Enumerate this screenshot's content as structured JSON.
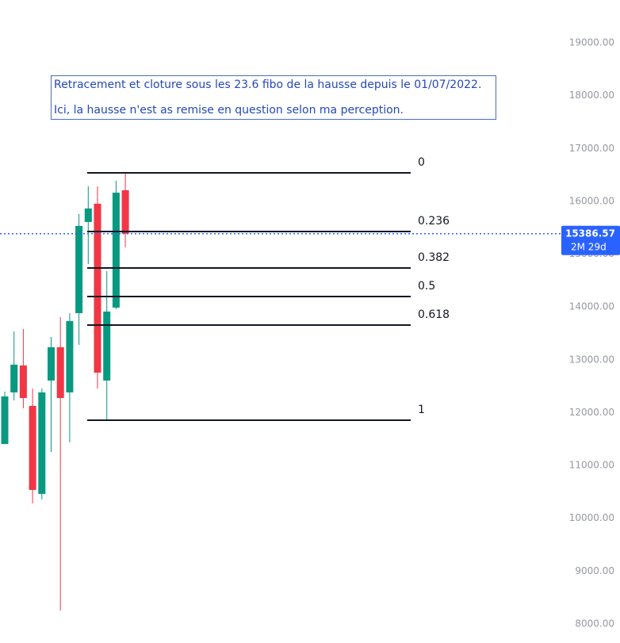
{
  "chart_data": {
    "type": "candlestick",
    "annotation": [
      "Retracement et cloture sous les 23.6 fibo de la hausse depuis le 01/07/2022.",
      "Ici, la hausse n'est as remise en question selon ma perception."
    ],
    "open": [
      11407,
      12383,
      12893,
      12127,
      10462,
      12607,
      13238,
      12383,
      13883,
      15609,
      15954,
      12607,
      13988,
      16209
    ],
    "high": [
      12400,
      13538,
      13583,
      12457,
      12457,
      13433,
      13808,
      13883,
      15759,
      16284,
      16284,
      14678,
      16389,
      16539
    ],
    "low": [
      11400,
      12232,
      12082,
      10282,
      10357,
      11257,
      8256,
      11437,
      13283,
      14813,
      12457,
      11857,
      13958,
      15129
    ],
    "close": [
      12307,
      12908,
      12277,
      10537,
      12383,
      13238,
      12277,
      13733,
      15534,
      15864,
      12757,
      13913,
      16164,
      15386.57
    ],
    "up_color": "#089981",
    "down_color": "#f23645",
    "ylim": [
      7640,
      19810
    ],
    "yticks": [
      {
        "value": 8000,
        "label": "8000.00"
      },
      {
        "value": 9000,
        "label": "9000.00"
      },
      {
        "value": 10000,
        "label": "10000.00"
      },
      {
        "value": 11000,
        "label": "11000.00"
      },
      {
        "value": 12000,
        "label": "12000.00"
      },
      {
        "value": 13000,
        "label": "13000.00"
      },
      {
        "value": 14000,
        "label": "14000.00"
      },
      {
        "value": 15000,
        "label": "15000.00"
      },
      {
        "value": 16000,
        "label": "16000.00"
      },
      {
        "value": 17000,
        "label": "17000.00"
      },
      {
        "value": 18000,
        "label": "18000.00"
      },
      {
        "value": 19000,
        "label": "19000.00"
      }
    ],
    "fib_levels": [
      {
        "ratio": 0,
        "price": 16539
      },
      {
        "ratio": 0.236,
        "price": 15429
      },
      {
        "ratio": 0.382,
        "price": 14738
      },
      {
        "ratio": 0.5,
        "price": 14198
      },
      {
        "ratio": 0.618,
        "price": 13658
      },
      {
        "ratio": 1,
        "price": 11857
      }
    ],
    "last_price": {
      "value": 15386.57,
      "countdown": "2M 29d",
      "color": "#2962ff"
    }
  }
}
